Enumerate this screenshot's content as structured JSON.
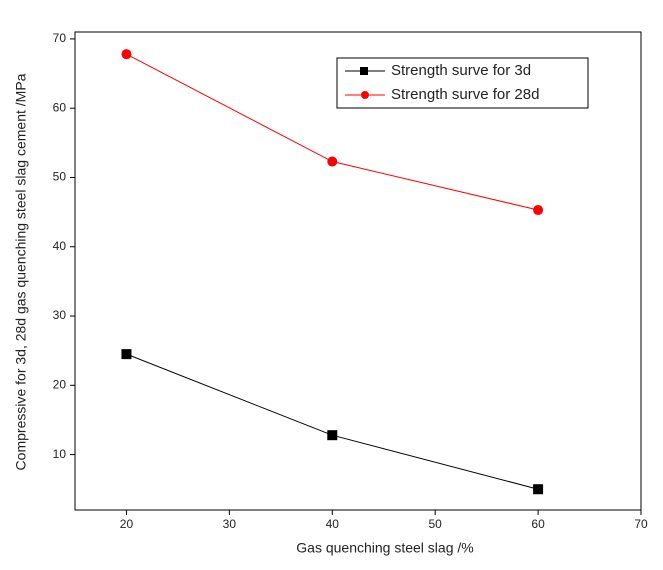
{
  "chart_data": {
    "type": "line",
    "x_label": "Gas quenching steel slag /%",
    "y_label": "Compressive for 3d, 28d gas quenching steel slag cement /MPa",
    "x": [
      20,
      40,
      60
    ],
    "series": [
      {
        "name": "Strength surve for 3d",
        "color": "#000000",
        "marker": "square",
        "values": [
          24.5,
          12.8,
          5.0
        ]
      },
      {
        "name": "Strength surve for 28d",
        "color": "#ff0000",
        "marker": "circle",
        "values": [
          67.8,
          52.3,
          45.3
        ]
      }
    ],
    "xlim": [
      15,
      70
    ],
    "ylim": [
      2,
      71
    ],
    "xticks": [
      20,
      30,
      40,
      50,
      60,
      70
    ],
    "yticks": [
      10,
      20,
      30,
      40,
      50,
      60,
      70
    ],
    "legend": "upper-right"
  }
}
